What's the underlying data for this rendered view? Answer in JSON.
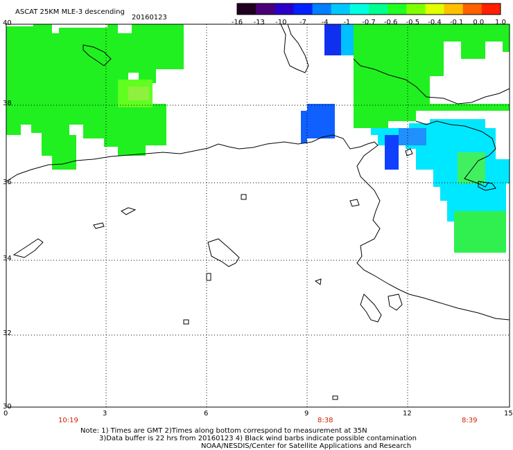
{
  "title": "ASCAT 25KM MLE-3 descending",
  "date": "20160123",
  "colorbar": {
    "ticks": [
      "-16",
      "-13",
      "-10",
      "-7",
      "-4",
      "-1",
      "-0.7",
      "-0.6",
      "-0.5",
      "-0.4",
      "-0.1",
      "0.0",
      "1.0"
    ],
    "colors": [
      "#200020",
      "#4a0078",
      "#2a00c8",
      "#0020ff",
      "#0080ff",
      "#00c8ff",
      "#00ffe0",
      "#00ff90",
      "#20ff20",
      "#80ff00",
      "#e0ff00",
      "#ffc000",
      "#ff6000",
      "#ff2000"
    ]
  },
  "lat_labels": [
    "40",
    "38",
    "36",
    "34",
    "32",
    "30"
  ],
  "lon_labels": [
    "0",
    "3",
    "6",
    "9",
    "12",
    "15"
  ],
  "time_labels": [
    "10:19",
    "8:38",
    "8:39"
  ],
  "notes": [
    "Note: 1) Times are GMT 2)Times along bottom correspond to measurement at 35N",
    "3)Data buffer is 22 hrs from 20160123 4) Black wind barbs indicate possible contamination",
    "NOAA/NESDIS/Center for Satellite Applications and Research"
  ],
  "colors": {
    "green": "#00f000",
    "blue": "#0050ff",
    "cyan": "#00f0ff"
  }
}
